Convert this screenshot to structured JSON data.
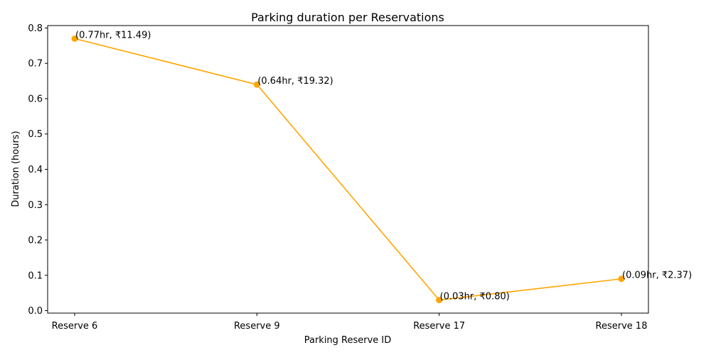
{
  "chart_data": {
    "type": "line",
    "title": "Parking duration per Reservations",
    "xlabel": "Parking Reserve ID",
    "ylabel": "Duration (hours)",
    "categories": [
      "Reserve 6",
      "Reserve 9",
      "Reserve 17",
      "Reserve 18"
    ],
    "series": [
      {
        "values": [
          0.77,
          0.64,
          0.03,
          0.09
        ],
        "color": "#ffa500",
        "marker": "circle"
      }
    ],
    "annotations": [
      "(0.77hr, ₹11.49)",
      "(0.64hr, ₹19.32)",
      "(0.03hr, ₹0.80)",
      "(0.09hr, ₹2.37)"
    ],
    "ylim": [
      -0.007,
      0.807
    ],
    "yticks": [
      0.0,
      0.1,
      0.2,
      0.3,
      0.4,
      0.5,
      0.6,
      0.7,
      0.8
    ],
    "ytick_labels": [
      "0.0",
      "0.1",
      "0.2",
      "0.3",
      "0.4",
      "0.5",
      "0.6",
      "0.7",
      "0.8"
    ],
    "grid": false,
    "legend": "none"
  }
}
